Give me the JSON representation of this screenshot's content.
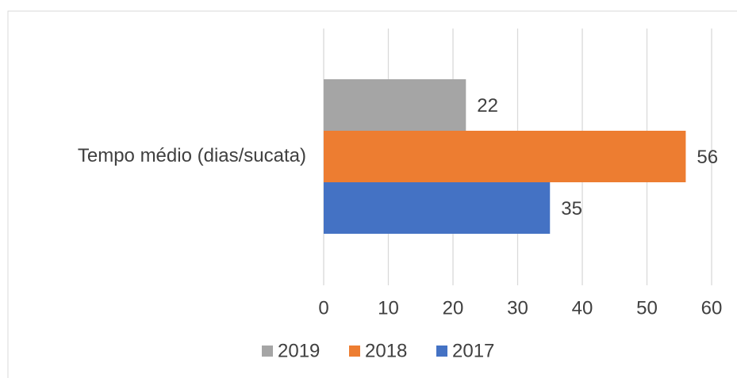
{
  "chart_data": {
    "type": "bar",
    "orientation": "horizontal",
    "categories": [
      "Tempo médio (dias/sucata)"
    ],
    "series": [
      {
        "name": "2019",
        "color": "#a5a5a5",
        "values": [
          22
        ]
      },
      {
        "name": "2018",
        "color": "#ed7d31",
        "values": [
          56
        ]
      },
      {
        "name": "2017",
        "color": "#4472c4",
        "values": [
          35
        ]
      }
    ],
    "xlim": [
      0,
      60
    ],
    "xticks": [
      0,
      10,
      20,
      30,
      40,
      50,
      60
    ],
    "grid": true,
    "legend": "bottom"
  }
}
